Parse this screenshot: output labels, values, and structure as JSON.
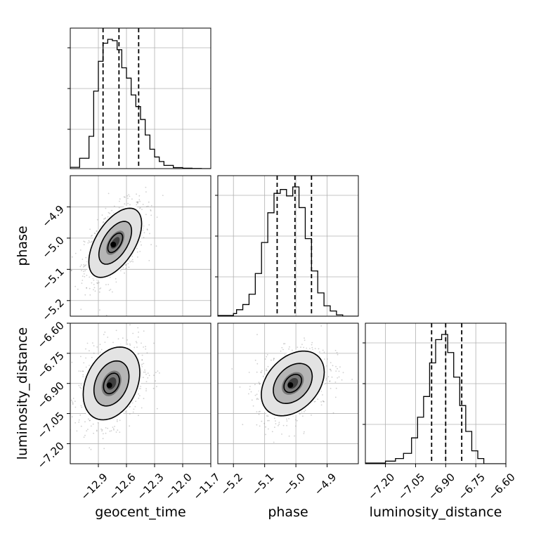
{
  "chart_data": {
    "type": "corner",
    "title": "",
    "grid": true,
    "parameters": [
      {
        "name": "geocent_time",
        "range": [
          -13.2,
          -11.7
        ],
        "ticks": [
          -12.9,
          -12.6,
          -12.3,
          -12.0,
          -11.7
        ],
        "tick_labels": [
          "−12.9",
          "−12.6",
          "−12.3",
          "−12.0",
          "−11.7"
        ],
        "quantiles": [
          -12.85,
          -12.68,
          -12.47
        ],
        "hist": {
          "edges": [
            -13.2,
            -13.1,
            -13.0,
            -12.95,
            -12.9,
            -12.85,
            -12.8,
            -12.75,
            -12.7,
            -12.65,
            -12.6,
            -12.55,
            -12.5,
            -12.45,
            -12.4,
            -12.35,
            -12.3,
            -12.25,
            -12.2,
            -12.1,
            -12.0,
            -11.9,
            -11.8,
            -11.7
          ],
          "heights": [
            0.01,
            0.08,
            0.25,
            0.6,
            0.83,
            0.97,
            1.0,
            0.99,
            0.92,
            0.78,
            0.7,
            0.57,
            0.48,
            0.38,
            0.26,
            0.15,
            0.09,
            0.055,
            0.025,
            0.008,
            0.003,
            0.001,
            0.0
          ]
        }
      },
      {
        "name": "phase",
        "range": [
          -5.25,
          -4.8
        ],
        "ticks": [
          -5.2,
          -5.1,
          -5.0,
          -4.9
        ],
        "tick_labels": [
          "−5.2",
          "−5.1",
          "−5.0",
          "−4.9"
        ],
        "quantiles": [
          -5.06,
          -5.003,
          -4.95
        ],
        "hist": {
          "edges": [
            -5.25,
            -5.2,
            -5.19,
            -5.17,
            -5.15,
            -5.13,
            -5.11,
            -5.09,
            -5.07,
            -5.05,
            -5.03,
            -5.01,
            -4.99,
            -4.97,
            -4.95,
            -4.93,
            -4.91,
            -4.89,
            -4.87,
            -4.85,
            -4.8
          ],
          "heights": [
            0.005,
            0.02,
            0.05,
            0.09,
            0.17,
            0.33,
            0.57,
            0.8,
            0.95,
            0.98,
            0.93,
            1.0,
            0.84,
            0.6,
            0.35,
            0.18,
            0.08,
            0.04,
            0.01,
            0.0
          ]
        }
      },
      {
        "name": "luminosity_distance",
        "range": [
          -7.3,
          -6.6
        ],
        "ticks": [
          -7.2,
          -7.05,
          -6.9,
          -6.75,
          -6.6
        ],
        "tick_labels": [
          "−7.20",
          "−7.05",
          "−6.90",
          "−6.75",
          "−6.60"
        ],
        "quantiles": [
          -6.97,
          -6.9,
          -6.82
        ],
        "hist": {
          "edges": [
            -7.3,
            -7.2,
            -7.15,
            -7.11,
            -7.07,
            -7.04,
            -7.01,
            -6.98,
            -6.95,
            -6.92,
            -6.89,
            -6.86,
            -6.83,
            -6.8,
            -6.77,
            -6.74,
            -6.71,
            -6.6
          ],
          "heights": [
            0.005,
            0.02,
            0.04,
            0.08,
            0.2,
            0.36,
            0.52,
            0.78,
            0.96,
            1.0,
            0.86,
            0.67,
            0.45,
            0.25,
            0.1,
            0.04,
            0.0
          ]
        }
      }
    ],
    "contour_levels": [
      0.39,
      0.86,
      1.39
    ],
    "pairs": [
      {
        "x": "geocent_time",
        "y": "phase",
        "mean": [
          -12.72,
          -5.015
        ],
        "sd": [
          0.14,
          0.055
        ],
        "corr": 0.55
      },
      {
        "x": "geocent_time",
        "y": "luminosity_distance",
        "mean": [
          -12.76,
          -6.9
        ],
        "sd": [
          0.15,
          0.09
        ],
        "corr": 0.3
      },
      {
        "x": "phase",
        "y": "luminosity_distance",
        "mean": [
          -5.01,
          -6.9
        ],
        "sd": [
          0.05,
          0.08
        ],
        "corr": 0.35
      }
    ]
  }
}
